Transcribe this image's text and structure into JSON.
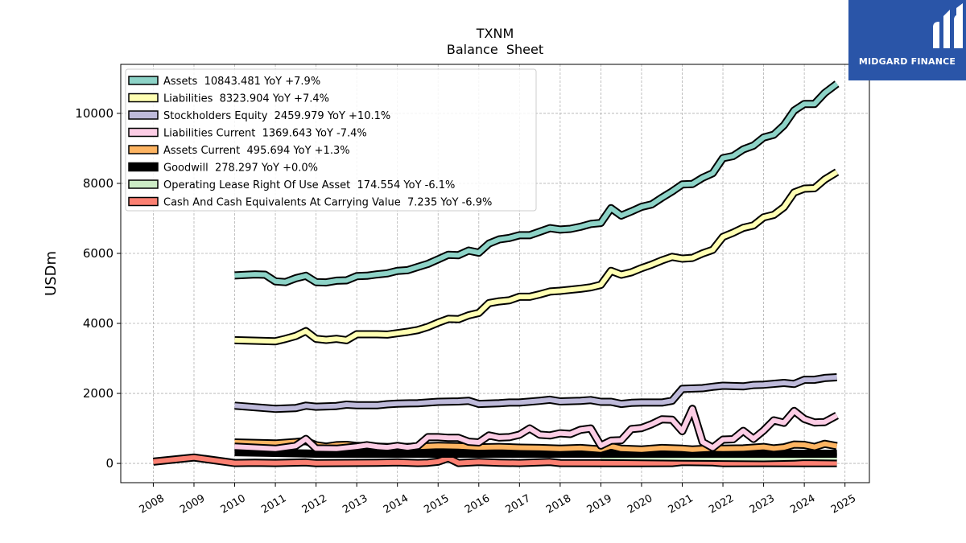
{
  "chart_data": {
    "type": "line",
    "title": "TXNM",
    "subtitle": "Balance  Sheet",
    "ylabel": "USDm",
    "xlabel": "",
    "xlim": [
      2007.2,
      2025.6
    ],
    "ylim": [
      -550,
      11400
    ],
    "x_ticks": [
      2008,
      2009,
      2010,
      2011,
      2012,
      2013,
      2014,
      2015,
      2016,
      2017,
      2018,
      2019,
      2020,
      2021,
      2022,
      2023,
      2024,
      2025
    ],
    "y_ticks": [
      0,
      2000,
      4000,
      6000,
      8000,
      10000
    ],
    "grid": true,
    "legend_position": "upper-left",
    "series": [
      {
        "name": "Assets  10843.481 YoY +7.9%",
        "color": "#8dd3c7",
        "points": [
          [
            2010.0,
            5370
          ],
          [
            2010.5,
            5400
          ],
          [
            2010.75,
            5390
          ],
          [
            2011.0,
            5200
          ],
          [
            2011.25,
            5180
          ],
          [
            2011.5,
            5290
          ],
          [
            2011.75,
            5360
          ],
          [
            2012.0,
            5180
          ],
          [
            2012.25,
            5170
          ],
          [
            2012.5,
            5220
          ],
          [
            2012.75,
            5230
          ],
          [
            2013.0,
            5350
          ],
          [
            2013.25,
            5360
          ],
          [
            2013.5,
            5400
          ],
          [
            2013.75,
            5430
          ],
          [
            2014.0,
            5500
          ],
          [
            2014.25,
            5520
          ],
          [
            2014.5,
            5610
          ],
          [
            2014.75,
            5700
          ],
          [
            2015.0,
            5830
          ],
          [
            2015.25,
            5960
          ],
          [
            2015.5,
            5950
          ],
          [
            2015.75,
            6080
          ],
          [
            2016.0,
            6020
          ],
          [
            2016.25,
            6280
          ],
          [
            2016.5,
            6400
          ],
          [
            2016.75,
            6440
          ],
          [
            2017.0,
            6520
          ],
          [
            2017.25,
            6520
          ],
          [
            2017.5,
            6620
          ],
          [
            2017.75,
            6720
          ],
          [
            2018.0,
            6680
          ],
          [
            2018.25,
            6700
          ],
          [
            2018.5,
            6760
          ],
          [
            2018.75,
            6840
          ],
          [
            2019.0,
            6870
          ],
          [
            2019.25,
            7290
          ],
          [
            2019.5,
            7080
          ],
          [
            2019.75,
            7200
          ],
          [
            2020.0,
            7330
          ],
          [
            2020.25,
            7400
          ],
          [
            2020.5,
            7590
          ],
          [
            2020.75,
            7770
          ],
          [
            2021.0,
            7970
          ],
          [
            2021.25,
            7980
          ],
          [
            2021.5,
            8160
          ],
          [
            2021.75,
            8290
          ],
          [
            2022.0,
            8720
          ],
          [
            2022.25,
            8780
          ],
          [
            2022.5,
            8970
          ],
          [
            2022.75,
            9080
          ],
          [
            2023.0,
            9310
          ],
          [
            2023.25,
            9390
          ],
          [
            2023.5,
            9660
          ],
          [
            2023.75,
            10080
          ],
          [
            2024.0,
            10270
          ],
          [
            2024.25,
            10270
          ],
          [
            2024.5,
            10580
          ],
          [
            2024.8,
            10843
          ]
        ]
      },
      {
        "name": "Liabilities  8323.904 YoY +7.4%",
        "color": "#ffffb3",
        "points": [
          [
            2010.0,
            3520
          ],
          [
            2011.0,
            3490
          ],
          [
            2011.25,
            3560
          ],
          [
            2011.5,
            3640
          ],
          [
            2011.75,
            3780
          ],
          [
            2012.0,
            3560
          ],
          [
            2012.25,
            3530
          ],
          [
            2012.5,
            3560
          ],
          [
            2012.75,
            3520
          ],
          [
            2013.0,
            3690
          ],
          [
            2013.5,
            3690
          ],
          [
            2013.75,
            3680
          ],
          [
            2014.0,
            3720
          ],
          [
            2014.25,
            3760
          ],
          [
            2014.5,
            3810
          ],
          [
            2014.75,
            3900
          ],
          [
            2015.0,
            4020
          ],
          [
            2015.25,
            4130
          ],
          [
            2015.5,
            4120
          ],
          [
            2015.75,
            4230
          ],
          [
            2016.0,
            4300
          ],
          [
            2016.25,
            4580
          ],
          [
            2016.5,
            4630
          ],
          [
            2016.75,
            4660
          ],
          [
            2017.0,
            4760
          ],
          [
            2017.25,
            4760
          ],
          [
            2017.5,
            4830
          ],
          [
            2017.75,
            4910
          ],
          [
            2018.0,
            4930
          ],
          [
            2018.25,
            4960
          ],
          [
            2018.5,
            4990
          ],
          [
            2018.75,
            5030
          ],
          [
            2019.0,
            5100
          ],
          [
            2019.25,
            5500
          ],
          [
            2019.5,
            5390
          ],
          [
            2019.75,
            5460
          ],
          [
            2020.0,
            5580
          ],
          [
            2020.25,
            5680
          ],
          [
            2020.5,
            5800
          ],
          [
            2020.75,
            5900
          ],
          [
            2021.0,
            5850
          ],
          [
            2021.25,
            5870
          ],
          [
            2021.5,
            6000
          ],
          [
            2021.75,
            6100
          ],
          [
            2022.0,
            6470
          ],
          [
            2022.25,
            6590
          ],
          [
            2022.5,
            6730
          ],
          [
            2022.75,
            6800
          ],
          [
            2023.0,
            7030
          ],
          [
            2023.25,
            7100
          ],
          [
            2023.5,
            7320
          ],
          [
            2023.75,
            7740
          ],
          [
            2024.0,
            7850
          ],
          [
            2024.25,
            7860
          ],
          [
            2024.5,
            8110
          ],
          [
            2024.8,
            8324
          ]
        ]
      },
      {
        "name": "Stockholders Equity  2459.979 YoY +10.1%",
        "color": "#bebada",
        "points": [
          [
            2010.0,
            1650
          ],
          [
            2011.0,
            1560
          ],
          [
            2011.5,
            1580
          ],
          [
            2011.75,
            1650
          ],
          [
            2012.0,
            1620
          ],
          [
            2012.5,
            1640
          ],
          [
            2012.75,
            1680
          ],
          [
            2013.0,
            1660
          ],
          [
            2013.5,
            1660
          ],
          [
            2013.75,
            1690
          ],
          [
            2014.0,
            1710
          ],
          [
            2014.5,
            1720
          ],
          [
            2015.0,
            1760
          ],
          [
            2015.5,
            1770
          ],
          [
            2015.75,
            1790
          ],
          [
            2016.0,
            1700
          ],
          [
            2016.5,
            1720
          ],
          [
            2016.75,
            1740
          ],
          [
            2017.0,
            1740
          ],
          [
            2017.5,
            1790
          ],
          [
            2017.75,
            1820
          ],
          [
            2018.0,
            1770
          ],
          [
            2018.5,
            1790
          ],
          [
            2018.75,
            1810
          ],
          [
            2019.0,
            1760
          ],
          [
            2019.25,
            1760
          ],
          [
            2019.5,
            1700
          ],
          [
            2019.75,
            1730
          ],
          [
            2020.0,
            1740
          ],
          [
            2020.5,
            1740
          ],
          [
            2020.75,
            1790
          ],
          [
            2021.0,
            2130
          ],
          [
            2021.5,
            2150
          ],
          [
            2021.75,
            2190
          ],
          [
            2022.0,
            2220
          ],
          [
            2022.5,
            2200
          ],
          [
            2022.75,
            2240
          ],
          [
            2023.0,
            2250
          ],
          [
            2023.5,
            2300
          ],
          [
            2023.75,
            2270
          ],
          [
            2024.0,
            2390
          ],
          [
            2024.25,
            2390
          ],
          [
            2024.5,
            2440
          ],
          [
            2024.8,
            2460
          ]
        ]
      },
      {
        "name": "Liabilities Current  1369.643 YoY -7.4%",
        "color": "#fccde5",
        "points": [
          [
            2010.0,
            480
          ],
          [
            2011.0,
            420
          ],
          [
            2011.5,
            500
          ],
          [
            2011.75,
            700
          ],
          [
            2012.0,
            430
          ],
          [
            2012.5,
            420
          ],
          [
            2013.0,
            480
          ],
          [
            2013.25,
            520
          ],
          [
            2013.5,
            480
          ],
          [
            2013.75,
            460
          ],
          [
            2014.0,
            500
          ],
          [
            2014.25,
            460
          ],
          [
            2014.5,
            500
          ],
          [
            2014.75,
            750
          ],
          [
            2015.0,
            750
          ],
          [
            2015.25,
            730
          ],
          [
            2015.5,
            730
          ],
          [
            2015.75,
            620
          ],
          [
            2016.0,
            600
          ],
          [
            2016.25,
            800
          ],
          [
            2016.5,
            740
          ],
          [
            2016.75,
            750
          ],
          [
            2017.0,
            820
          ],
          [
            2017.25,
            1000
          ],
          [
            2017.5,
            820
          ],
          [
            2017.75,
            800
          ],
          [
            2018.0,
            860
          ],
          [
            2018.25,
            840
          ],
          [
            2018.5,
            960
          ],
          [
            2018.75,
            1000
          ],
          [
            2019.0,
            510
          ],
          [
            2019.25,
            650
          ],
          [
            2019.5,
            660
          ],
          [
            2019.75,
            980
          ],
          [
            2020.0,
            1010
          ],
          [
            2020.25,
            1120
          ],
          [
            2020.5,
            1260
          ],
          [
            2020.75,
            1250
          ],
          [
            2021.0,
            920
          ],
          [
            2021.25,
            1560
          ],
          [
            2021.5,
            610
          ],
          [
            2021.75,
            450
          ],
          [
            2022.0,
            680
          ],
          [
            2022.25,
            690
          ],
          [
            2022.5,
            930
          ],
          [
            2022.75,
            700
          ],
          [
            2023.0,
            940
          ],
          [
            2023.25,
            1230
          ],
          [
            2023.5,
            1160
          ],
          [
            2023.75,
            1500
          ],
          [
            2024.0,
            1270
          ],
          [
            2024.25,
            1170
          ],
          [
            2024.5,
            1180
          ],
          [
            2024.8,
            1370
          ]
        ]
      },
      {
        "name": "Assets Current  495.694 YoY +1.3%",
        "color": "#fdb462",
        "points": [
          [
            2010.0,
            600
          ],
          [
            2011.0,
            570
          ],
          [
            2011.5,
            610
          ],
          [
            2011.75,
            640
          ],
          [
            2012.0,
            520
          ],
          [
            2012.25,
            480
          ],
          [
            2012.5,
            520
          ],
          [
            2012.75,
            530
          ],
          [
            2013.0,
            500
          ],
          [
            2013.5,
            480
          ],
          [
            2014.0,
            460
          ],
          [
            2014.5,
            480
          ],
          [
            2015.0,
            500
          ],
          [
            2015.5,
            490
          ],
          [
            2016.0,
            460
          ],
          [
            2016.5,
            470
          ],
          [
            2017.0,
            450
          ],
          [
            2017.5,
            440
          ],
          [
            2018.0,
            420
          ],
          [
            2018.5,
            440
          ],
          [
            2019.0,
            400
          ],
          [
            2019.25,
            490
          ],
          [
            2019.5,
            420
          ],
          [
            2020.0,
            400
          ],
          [
            2020.5,
            440
          ],
          [
            2021.0,
            420
          ],
          [
            2021.25,
            400
          ],
          [
            2021.75,
            430
          ],
          [
            2022.0,
            420
          ],
          [
            2022.5,
            430
          ],
          [
            2023.0,
            470
          ],
          [
            2023.25,
            430
          ],
          [
            2023.5,
            460
          ],
          [
            2023.75,
            540
          ],
          [
            2024.0,
            530
          ],
          [
            2024.25,
            470
          ],
          [
            2024.5,
            560
          ],
          [
            2024.8,
            496
          ]
        ]
      },
      {
        "name": "Goodwill  278.297 YoY +0.0%",
        "color": "#000000",
        "points": [
          [
            2010.0,
            320
          ],
          [
            2012.0,
            278
          ],
          [
            2024.8,
            278
          ]
        ]
      },
      {
        "name": "Operating Lease Right Of Use Asset  174.554 YoY -6.1%",
        "color": "#ccebc5",
        "points": [
          [
            2019.0,
            190
          ],
          [
            2020.0,
            180
          ],
          [
            2021.0,
            170
          ],
          [
            2022.0,
            160
          ],
          [
            2023.0,
            150
          ],
          [
            2023.75,
            170
          ],
          [
            2024.0,
            186
          ],
          [
            2024.8,
            175
          ]
        ]
      },
      {
        "name": "Cash And Cash Equivalents At Carrying Value  7.235 YoY -6.9%",
        "color": "#fb8072",
        "points": [
          [
            2008.0,
            50
          ],
          [
            2009.0,
            170
          ],
          [
            2010.0,
            10
          ],
          [
            2010.5,
            20
          ],
          [
            2011.0,
            10
          ],
          [
            2011.75,
            30
          ],
          [
            2012.0,
            5
          ],
          [
            2013.5,
            20
          ],
          [
            2014.0,
            30
          ],
          [
            2014.5,
            10
          ],
          [
            2014.75,
            20
          ],
          [
            2015.0,
            50
          ],
          [
            2015.25,
            150
          ],
          [
            2015.5,
            10
          ],
          [
            2016.0,
            40
          ],
          [
            2016.5,
            20
          ],
          [
            2017.0,
            10
          ],
          [
            2017.75,
            40
          ],
          [
            2018.0,
            10
          ],
          [
            2020.0,
            5
          ],
          [
            2020.75,
            10
          ],
          [
            2021.0,
            40
          ],
          [
            2021.75,
            30
          ],
          [
            2022.0,
            8
          ],
          [
            2023.0,
            10
          ],
          [
            2024.0,
            8
          ],
          [
            2024.8,
            7
          ]
        ]
      }
    ]
  },
  "logo": {
    "text": "MIDGARD FINANCE"
  }
}
